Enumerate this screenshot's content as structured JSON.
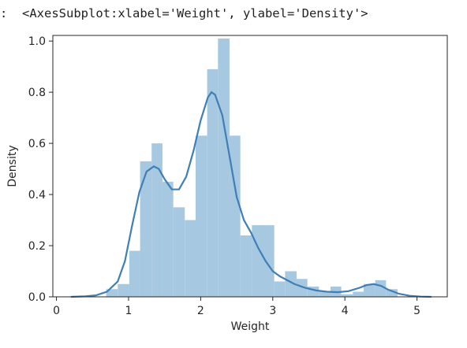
{
  "output": {
    "prompt_mark": ":",
    "repr_text": "<AxesSubplot:xlabel='Weight', ylabel='Density'>"
  },
  "chart_data": {
    "type": "histogram",
    "title": "",
    "xlabel": "Weight",
    "ylabel": "Density",
    "xlim": [
      -0.05,
      5.42
    ],
    "ylim": [
      0,
      1.022
    ],
    "xticks": [
      0,
      1,
      2,
      3,
      4,
      5
    ],
    "xtick_labels": [
      "0",
      "1",
      "2",
      "3",
      "4",
      "5"
    ],
    "yticks": [
      0.0,
      0.2,
      0.4,
      0.6,
      0.8,
      1.0
    ],
    "ytick_labels": [
      "0.0",
      "0.2",
      "0.4",
      "0.6",
      "0.8",
      "1.0"
    ],
    "grid": false,
    "bar_color": "#a6c8e0",
    "kde_color": "#3f7fb5",
    "bins": [
      {
        "x0": 0.69,
        "x1": 0.85,
        "density": 0.03
      },
      {
        "x0": 0.85,
        "x1": 1.01,
        "density": 0.05
      },
      {
        "x0": 1.01,
        "x1": 1.16,
        "density": 0.18
      },
      {
        "x0": 1.16,
        "x1": 1.32,
        "density": 0.53
      },
      {
        "x0": 1.32,
        "x1": 1.47,
        "density": 0.6
      },
      {
        "x0": 1.47,
        "x1": 1.62,
        "density": 0.45
      },
      {
        "x0": 1.62,
        "x1": 1.78,
        "density": 0.35
      },
      {
        "x0": 1.78,
        "x1": 1.93,
        "density": 0.3
      },
      {
        "x0": 1.93,
        "x1": 2.09,
        "density": 0.63
      },
      {
        "x0": 2.09,
        "x1": 2.24,
        "density": 0.89
      },
      {
        "x0": 2.24,
        "x1": 2.4,
        "density": 1.01
      },
      {
        "x0": 2.4,
        "x1": 2.55,
        "density": 0.63
      },
      {
        "x0": 2.55,
        "x1": 2.71,
        "density": 0.24
      },
      {
        "x0": 2.71,
        "x1": 2.86,
        "density": 0.28
      },
      {
        "x0": 2.86,
        "x1": 3.02,
        "density": 0.28
      },
      {
        "x0": 3.02,
        "x1": 3.17,
        "density": 0.06
      },
      {
        "x0": 3.17,
        "x1": 3.33,
        "density": 0.1
      },
      {
        "x0": 3.33,
        "x1": 3.48,
        "density": 0.07
      },
      {
        "x0": 3.48,
        "x1": 3.64,
        "density": 0.04
      },
      {
        "x0": 3.64,
        "x1": 3.8,
        "density": 0.02
      },
      {
        "x0": 3.8,
        "x1": 3.95,
        "density": 0.04
      },
      {
        "x0": 3.95,
        "x1": 4.11,
        "density": 0.01
      },
      {
        "x0": 4.11,
        "x1": 4.26,
        "density": 0.02
      },
      {
        "x0": 4.26,
        "x1": 4.42,
        "density": 0.05
      },
      {
        "x0": 4.42,
        "x1": 4.57,
        "density": 0.065
      },
      {
        "x0": 4.57,
        "x1": 4.73,
        "density": 0.03
      }
    ],
    "kde": {
      "x": [
        0.2,
        0.4,
        0.55,
        0.7,
        0.85,
        0.95,
        1.05,
        1.15,
        1.25,
        1.35,
        1.42,
        1.5,
        1.6,
        1.7,
        1.8,
        1.9,
        2.0,
        2.1,
        2.15,
        2.2,
        2.3,
        2.4,
        2.5,
        2.6,
        2.7,
        2.8,
        2.9,
        3.0,
        3.1,
        3.2,
        3.3,
        3.45,
        3.6,
        3.75,
        3.9,
        4.05,
        4.2,
        4.3,
        4.4,
        4.5,
        4.6,
        4.75,
        4.9,
        5.05,
        5.2
      ],
      "y": [
        0.0,
        0.002,
        0.006,
        0.02,
        0.06,
        0.14,
        0.28,
        0.41,
        0.49,
        0.51,
        0.5,
        0.46,
        0.42,
        0.42,
        0.47,
        0.57,
        0.69,
        0.78,
        0.8,
        0.79,
        0.71,
        0.55,
        0.39,
        0.3,
        0.25,
        0.19,
        0.14,
        0.1,
        0.08,
        0.065,
        0.05,
        0.035,
        0.025,
        0.02,
        0.018,
        0.022,
        0.035,
        0.046,
        0.05,
        0.043,
        0.028,
        0.012,
        0.004,
        0.001,
        0.0
      ]
    }
  }
}
